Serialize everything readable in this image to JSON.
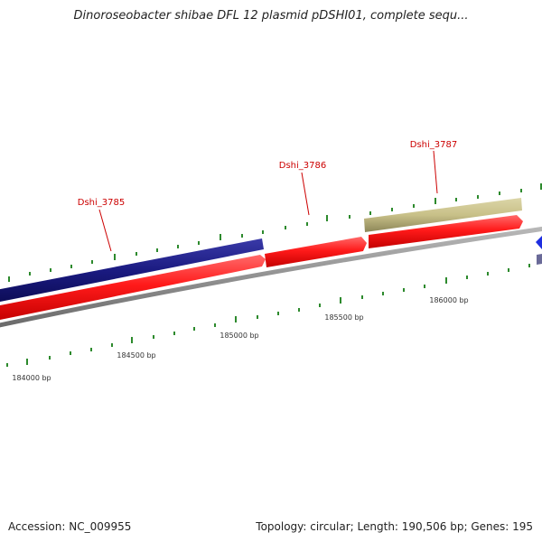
{
  "header": {
    "title": "Dinoroseobacter shibae DFL 12 plasmid pDSHI01, complete sequ..."
  },
  "footer": {
    "accession": "Accession: NC_009955",
    "topology": "Topology: circular; Length: 190,506 bp; Genes: 195"
  },
  "map": {
    "colors": {
      "backbone": "#888888",
      "forward_gene": "#ff1010",
      "reverse_gene": "#1a1a80",
      "other_gene": "#c8c088",
      "tick": "#2d8a2d",
      "label": "#cc0000"
    },
    "gene_labels": [
      {
        "name": "Dshi_3785"
      },
      {
        "name": "Dshi_3786"
      },
      {
        "name": "Dshi_3787"
      }
    ],
    "bp_labels": [
      {
        "text": "184000 bp"
      },
      {
        "text": "184500 bp"
      },
      {
        "text": "185000 bp"
      },
      {
        "text": "185500 bp"
      },
      {
        "text": "186000 bp"
      }
    ]
  }
}
